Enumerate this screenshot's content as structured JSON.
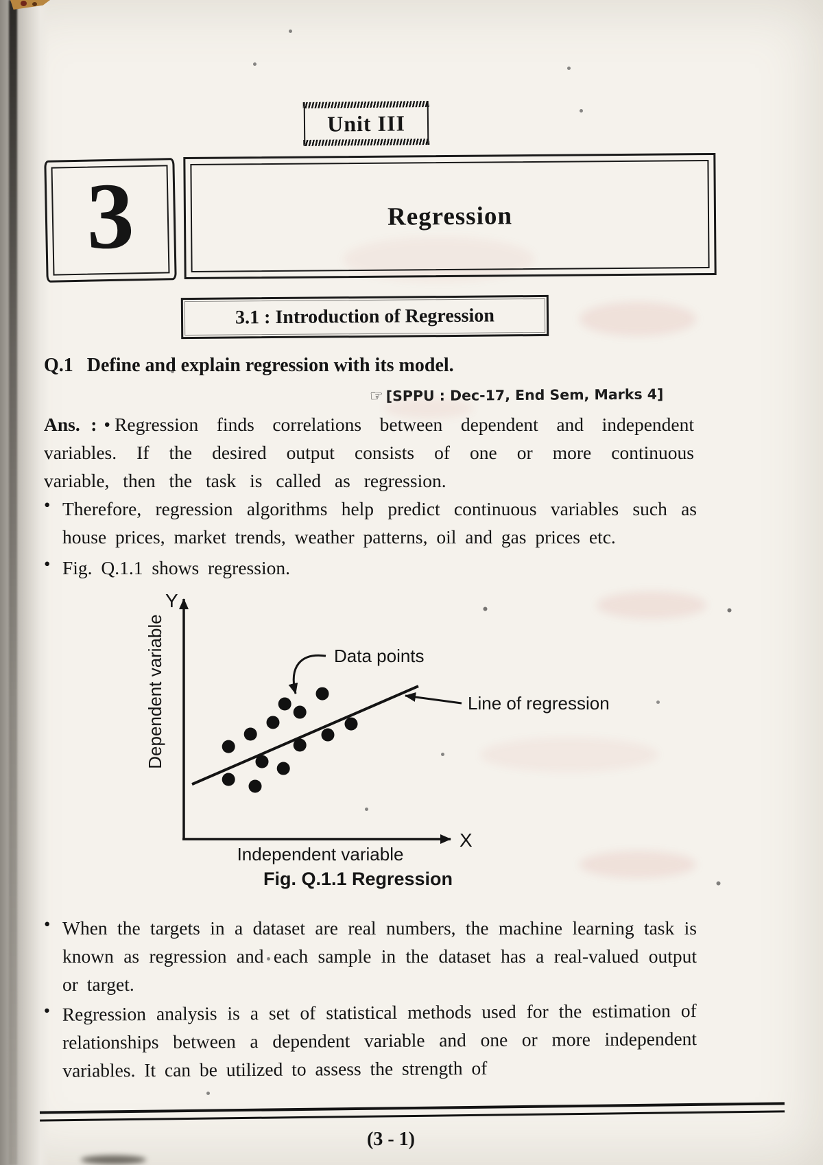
{
  "page": {
    "unit_label": "Unit III",
    "chapter": {
      "number": "3",
      "title": "Regression"
    },
    "section_heading": "3.1 : Introduction of Regression",
    "question": {
      "number": "Q.1",
      "text": "Define and explain regression with its model.",
      "citation_icon": "☞",
      "citation": "[SPPU : Dec-17, End Sem, Marks 4]"
    },
    "answer": {
      "prefix": "Ans. :",
      "bullet_glyph": "•",
      "intro": "Regression finds correlations between dependent and independent variables. If the desired output consists of one or more continuous variable, then the task is called as regression.",
      "bullets_before_figure": [
        "Therefore, regression algorithms help predict continuous variables such as house prices, market trends, weather patterns, oil and gas prices etc.",
        "Fig. Q.1.1 shows regression."
      ],
      "bullets_after_figure": [
        "When the targets in a dataset are real numbers, the machine learning task is known as regression and each sample in the dataset has a real-valued output or target.",
        "Regression analysis is a set of statistical methods used for the estimation of relationships between a dependent variable and one or more independent variables. It can be utilized to assess the strength of"
      ]
    },
    "figure": {
      "caption": "Fig. Q.1.1 Regression"
    },
    "footer_page_number": "(3 - 1)"
  },
  "chart_data": {
    "type": "scatter",
    "title": "Fig. Q.1.1 Regression",
    "xlabel": "Independent variable",
    "ylabel": "Dependent variable",
    "x_axis_letter": "X",
    "y_axis_letter": "Y",
    "annotation_data_points": "Data points",
    "annotation_line": "Line of regression",
    "grid": false,
    "legend": false,
    "axis_numeric_labels": false,
    "xlim": [
      0,
      100
    ],
    "ylim": [
      0,
      100
    ],
    "points": [
      [
        50.5,
        59.7
      ],
      [
        36.8,
        55.5
      ],
      [
        42.3,
        52.1
      ],
      [
        32.5,
        47.9
      ],
      [
        24.3,
        43.1
      ],
      [
        16.3,
        38.0
      ],
      [
        61.0,
        47.3
      ],
      [
        52.5,
        42.8
      ],
      [
        42.3,
        38.6
      ],
      [
        28.5,
        31.8
      ],
      [
        36.3,
        29.0
      ],
      [
        16.3,
        24.5
      ],
      [
        26.0,
        21.7
      ]
    ],
    "regression_line": {
      "x1": 3.0,
      "y1": 22.5,
      "x2": 85.5,
      "y2": 62.8
    }
  }
}
